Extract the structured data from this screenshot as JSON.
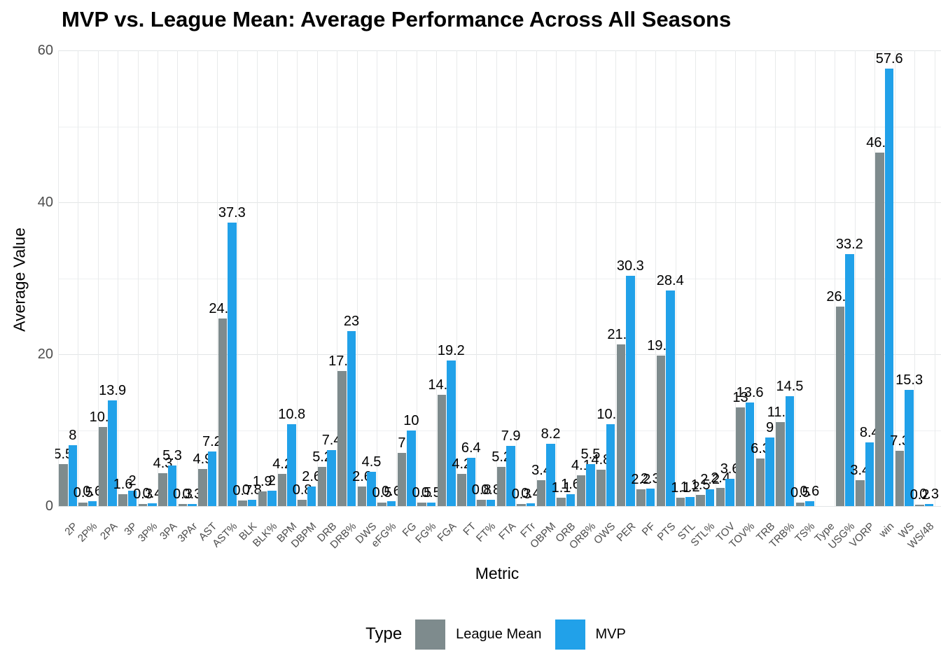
{
  "title": "MVP vs. League Mean: Average Performance Across All Seasons",
  "colors": {
    "league_mean": "#7E8B8D",
    "mvp": "#21A1E9",
    "grid_major": "#e2e5e6",
    "grid_minor": "#eef0f1",
    "grid_vertical": "#e8eaeb",
    "tick_text": "#4d4d4d",
    "background": "#ffffff"
  },
  "chart_data": {
    "type": "bar",
    "title": "MVP vs. League Mean: Average Performance Across All Seasons",
    "xlabel": "Metric",
    "ylabel": "Average Value",
    "ylim": [
      0,
      60
    ],
    "yticks_major": [
      0,
      20,
      40,
      60
    ],
    "yticks_minor": [
      10,
      30,
      50
    ],
    "grid": true,
    "legend_title": "Type",
    "legend_position": "bottom",
    "bar_value_labels": true,
    "categories": [
      "2P",
      "2P%",
      "2PA",
      "3P",
      "3P%",
      "3PA",
      "3PAr",
      "AST",
      "AST%",
      "BLK",
      "BLK%",
      "BPM",
      "DBPM",
      "DRB",
      "DRB%",
      "DWS",
      "eFG%",
      "FG",
      "FG%",
      "FGA",
      "FT",
      "FT%",
      "FTA",
      "FTr",
      "OBPM",
      "ORB",
      "ORB%",
      "OWS",
      "PER",
      "PF",
      "PTS",
      "STL",
      "STL%",
      "TOV",
      "TOV%",
      "TRB",
      "TRB%",
      "TS%",
      "Type",
      "USG%",
      "VORP",
      "win",
      "WS",
      "WS/48"
    ],
    "series": [
      {
        "name": "League Mean",
        "color": "#7E8B8D",
        "values": [
          5.5,
          0.5,
          10.4,
          1.6,
          0.3,
          4.3,
          0.3,
          4.9,
          24.7,
          0.7,
          1.9,
          4.2,
          0.8,
          5.2,
          17.8,
          2.6,
          0.5,
          7,
          0.5,
          14.7,
          4.2,
          0.8,
          5.2,
          0.3,
          3.4,
          1.1,
          4.1,
          4.8,
          21.3,
          2.2,
          19.8,
          1.1,
          1.5,
          2.4,
          13,
          6.3,
          11.1,
          0.5,
          null,
          26.3,
          3.4,
          46.5,
          7.3,
          0.2
        ]
      },
      {
        "name": "MVP",
        "color": "#21A1E9",
        "values": [
          8,
          0.6,
          13.9,
          2,
          0.4,
          5.3,
          0.3,
          7.2,
          37.3,
          0.8,
          2,
          10.8,
          2.6,
          7.4,
          23,
          4.5,
          0.6,
          10,
          0.5,
          19.2,
          6.4,
          0.8,
          7.9,
          0.4,
          8.2,
          1.6,
          5.5,
          10.8,
          30.3,
          2.3,
          28.4,
          1.2,
          2.2,
          3.6,
          13.6,
          9,
          14.5,
          0.6,
          null,
          33.2,
          8.4,
          57.6,
          15.3,
          0.3
        ]
      }
    ]
  }
}
